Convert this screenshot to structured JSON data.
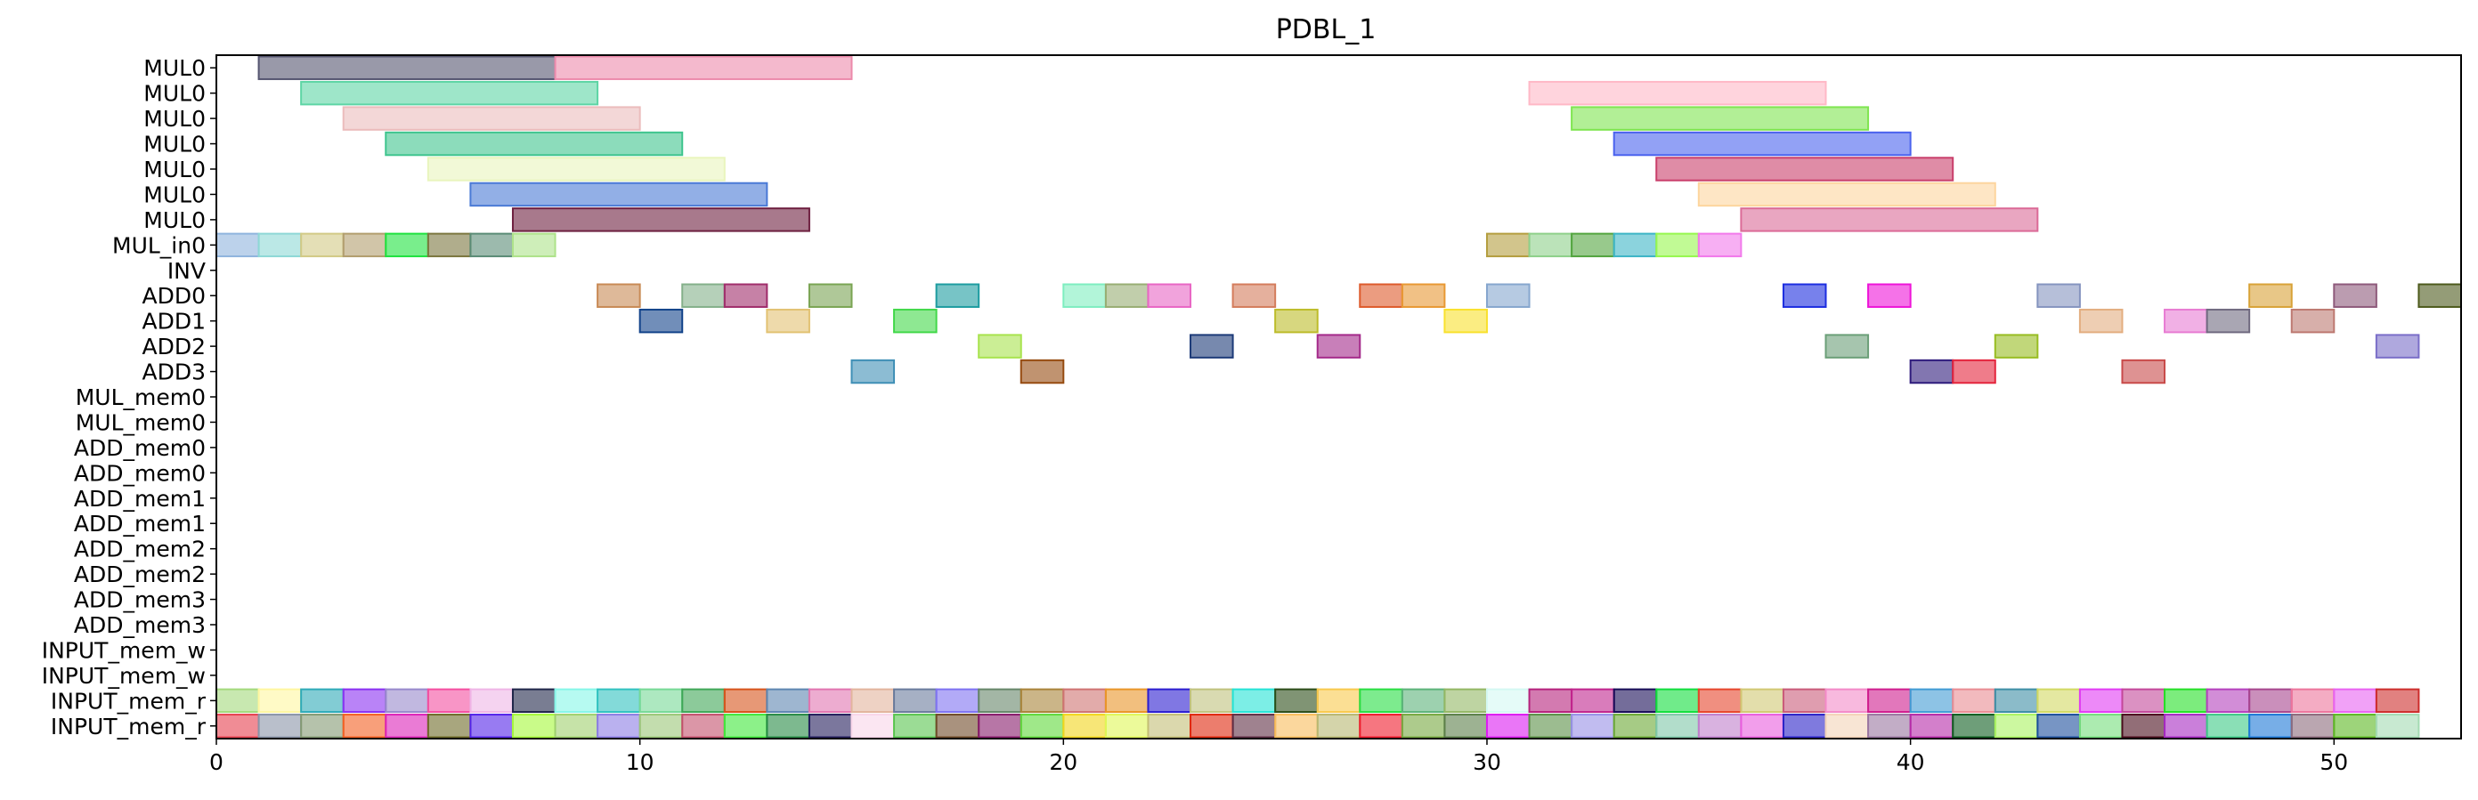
{
  "chart_data": {
    "type": "gantt",
    "title": "PDBL_1",
    "xlabel": "",
    "ylabel": "",
    "xlim": [
      0,
      53
    ],
    "x_ticks": [
      0,
      10,
      20,
      30,
      40,
      50
    ],
    "rows": [
      "MUL0",
      "MUL0",
      "MUL0",
      "MUL0",
      "MUL0",
      "MUL0",
      "MUL0",
      "MUL_in0",
      "INV",
      "ADD0",
      "ADD1",
      "ADD2",
      "ADD3",
      "MUL_mem0",
      "MUL_mem0",
      "ADD_mem0",
      "ADD_mem0",
      "ADD_mem1",
      "ADD_mem1",
      "ADD_mem2",
      "ADD_mem2",
      "ADD_mem3",
      "ADD_mem3",
      "INPUT_mem_w",
      "INPUT_mem_w",
      "INPUT_mem_r",
      "INPUT_mem_r"
    ],
    "tasks": [
      {
        "row": 0,
        "start": 1,
        "end": 8,
        "color": "#555570"
      },
      {
        "row": 0,
        "start": 8,
        "end": 15,
        "color": "#ec8aab"
      },
      {
        "row": 1,
        "start": 2,
        "end": 9,
        "color": "#5ed5a5"
      },
      {
        "row": 1,
        "start": 31,
        "end": 38,
        "color": "#ffb8c6"
      },
      {
        "row": 2,
        "start": 3,
        "end": 10,
        "color": "#ebbcbc"
      },
      {
        "row": 2,
        "start": 32,
        "end": 39,
        "color": "#7fe550"
      },
      {
        "row": 3,
        "start": 4,
        "end": 11,
        "color": "#3fc58e"
      },
      {
        "row": 3,
        "start": 33,
        "end": 40,
        "color": "#4a62ee"
      },
      {
        "row": 4,
        "start": 5,
        "end": 12,
        "color": "#e9f5bd"
      },
      {
        "row": 4,
        "start": 34,
        "end": 41,
        "color": "#c93f6b"
      },
      {
        "row": 5,
        "start": 6,
        "end": 13,
        "color": "#4a7ad6"
      },
      {
        "row": 5,
        "start": 35,
        "end": 42,
        "color": "#fdd59e"
      },
      {
        "row": 6,
        "start": 7,
        "end": 14,
        "color": "#6e2040"
      },
      {
        "row": 6,
        "start": 36,
        "end": 43,
        "color": "#db6b97"
      },
      {
        "row": 7,
        "start": 0,
        "end": 1,
        "color": "#8fb4de"
      },
      {
        "row": 7,
        "start": 1,
        "end": 2,
        "color": "#8ed8d6"
      },
      {
        "row": 7,
        "start": 2,
        "end": 3,
        "color": "#d2ca86"
      },
      {
        "row": 7,
        "start": 3,
        "end": 4,
        "color": "#b29e6e"
      },
      {
        "row": 7,
        "start": 4,
        "end": 5,
        "color": "#1fe23f"
      },
      {
        "row": 7,
        "start": 5,
        "end": 6,
        "color": "#7c773f"
      },
      {
        "row": 7,
        "start": 6,
        "end": 7,
        "color": "#5a8c76"
      },
      {
        "row": 7,
        "start": 7,
        "end": 8,
        "color": "#aee28a"
      },
      {
        "row": 7,
        "start": 30,
        "end": 31,
        "color": "#b49e3f"
      },
      {
        "row": 7,
        "start": 31,
        "end": 32,
        "color": "#8ed08a"
      },
      {
        "row": 7,
        "start": 32,
        "end": 33,
        "color": "#53a53f"
      },
      {
        "row": 7,
        "start": 33,
        "end": 34,
        "color": "#3db5c6"
      },
      {
        "row": 7,
        "start": 34,
        "end": 35,
        "color": "#97f74f"
      },
      {
        "row": 7,
        "start": 35,
        "end": 36,
        "color": "#f27aeb"
      },
      {
        "row": 9,
        "start": 9,
        "end": 10,
        "color": "#c88a55"
      },
      {
        "row": 9,
        "start": 11,
        "end": 12,
        "color": "#84b08a"
      },
      {
        "row": 9,
        "start": 12,
        "end": 13,
        "color": "#a02d6b"
      },
      {
        "row": 9,
        "start": 14,
        "end": 15,
        "color": "#7aa453"
      },
      {
        "row": 9,
        "start": 17,
        "end": 18,
        "color": "#1d9ca0"
      },
      {
        "row": 9,
        "start": 20,
        "end": 21,
        "color": "#7eeec0"
      },
      {
        "row": 9,
        "start": 21,
        "end": 22,
        "color": "#98ad73"
      },
      {
        "row": 9,
        "start": 22,
        "end": 23,
        "color": "#e866c4"
      },
      {
        "row": 9,
        "start": 24,
        "end": 25,
        "color": "#d47c5c"
      },
      {
        "row": 9,
        "start": 27,
        "end": 28,
        "color": "#de5a2b"
      },
      {
        "row": 9,
        "start": 28,
        "end": 29,
        "color": "#e89833"
      },
      {
        "row": 9,
        "start": 30,
        "end": 31,
        "color": "#86a6ce"
      },
      {
        "row": 9,
        "start": 37,
        "end": 38,
        "color": "#1c2de0"
      },
      {
        "row": 9,
        "start": 39,
        "end": 40,
        "color": "#ee14d8"
      },
      {
        "row": 9,
        "start": 43,
        "end": 44,
        "color": "#8594bf"
      },
      {
        "row": 9,
        "start": 48,
        "end": 49,
        "color": "#d8a237"
      },
      {
        "row": 9,
        "start": 50,
        "end": 51,
        "color": "#8e5a7b"
      },
      {
        "row": 9,
        "start": 52,
        "end": 53,
        "color": "#4d5a1c"
      },
      {
        "row": 10,
        "start": 10,
        "end": 11,
        "color": "#12438a"
      },
      {
        "row": 10,
        "start": 13,
        "end": 14,
        "color": "#e2c273"
      },
      {
        "row": 10,
        "start": 16,
        "end": 17,
        "color": "#42d84a"
      },
      {
        "row": 10,
        "start": 25,
        "end": 26,
        "color": "#bdbc2a"
      },
      {
        "row": 10,
        "start": 29,
        "end": 30,
        "color": "#f9e12e"
      },
      {
        "row": 10,
        "start": 44,
        "end": 45,
        "color": "#e3ae80"
      },
      {
        "row": 10,
        "start": 46,
        "end": 47,
        "color": "#e77cd3"
      },
      {
        "row": 10,
        "start": 47,
        "end": 48,
        "color": "#706a80"
      },
      {
        "row": 10,
        "start": 49,
        "end": 50,
        "color": "#bd7971"
      },
      {
        "row": 11,
        "start": 18,
        "end": 19,
        "color": "#a8e34e"
      },
      {
        "row": 11,
        "start": 23,
        "end": 24,
        "color": "#1c3a78"
      },
      {
        "row": 11,
        "start": 26,
        "end": 27,
        "color": "#a42a8a"
      },
      {
        "row": 11,
        "start": 38,
        "end": 39,
        "color": "#6b9f78"
      },
      {
        "row": 11,
        "start": 42,
        "end": 43,
        "color": "#98bd22"
      },
      {
        "row": 11,
        "start": 51,
        "end": 52,
        "color": "#7a6ec8"
      },
      {
        "row": 12,
        "start": 15,
        "end": 16,
        "color": "#3f8fb6"
      },
      {
        "row": 12,
        "start": 19,
        "end": 20,
        "color": "#964b10"
      },
      {
        "row": 12,
        "start": 40,
        "end": 41,
        "color": "#2e1b7c"
      },
      {
        "row": 12,
        "start": 41,
        "end": 42,
        "color": "#e4243c"
      },
      {
        "row": 12,
        "start": 45,
        "end": 46,
        "color": "#c84a49"
      },
      {
        "row": 25,
        "start": 0,
        "end": 1,
        "color": "#a3d97c"
      },
      {
        "row": 25,
        "start": 1,
        "end": 2,
        "color": "#fff6a0"
      },
      {
        "row": 25,
        "start": 2,
        "end": 3,
        "color": "#2eaab8"
      },
      {
        "row": 25,
        "start": 3,
        "end": 4,
        "color": "#8a31f2"
      },
      {
        "row": 25,
        "start": 4,
        "end": 5,
        "color": "#9889cc"
      },
      {
        "row": 25,
        "start": 5,
        "end": 6,
        "color": "#f44ea0"
      },
      {
        "row": 25,
        "start": 6,
        "end": 7,
        "color": "#efb5e6"
      },
      {
        "row": 25,
        "start": 7,
        "end": 8,
        "color": "#1f2649"
      },
      {
        "row": 25,
        "start": 8,
        "end": 9,
        "color": "#86f6e8"
      },
      {
        "row": 25,
        "start": 9,
        "end": 10,
        "color": "#31c2c0"
      },
      {
        "row": 25,
        "start": 10,
        "end": 11,
        "color": "#76d996"
      },
      {
        "row": 25,
        "start": 11,
        "end": 12,
        "color": "#3fa757"
      },
      {
        "row": 25,
        "start": 12,
        "end": 13,
        "color": "#d7531b"
      },
      {
        "row": 25,
        "start": 13,
        "end": 14,
        "color": "#5e86b1"
      },
      {
        "row": 25,
        "start": 14,
        "end": 15,
        "color": "#e175b0"
      },
      {
        "row": 25,
        "start": 15,
        "end": 16,
        "color": "#e2b49d"
      },
      {
        "row": 25,
        "start": 16,
        "end": 17,
        "color": "#6a7b9c"
      },
      {
        "row": 25,
        "start": 17,
        "end": 18,
        "color": "#7e72f1"
      },
      {
        "row": 25,
        "start": 18,
        "end": 19,
        "color": "#668669"
      },
      {
        "row": 25,
        "start": 19,
        "end": 20,
        "color": "#a98339"
      },
      {
        "row": 25,
        "start": 20,
        "end": 21,
        "color": "#cf7372"
      },
      {
        "row": 25,
        "start": 21,
        "end": 22,
        "color": "#e99528"
      },
      {
        "row": 25,
        "start": 22,
        "end": 23,
        "color": "#2b1dd0"
      },
      {
        "row": 25,
        "start": 23,
        "end": 24,
        "color": "#c0c27d"
      },
      {
        "row": 25,
        "start": 24,
        "end": 25,
        "color": "#25e3d6"
      },
      {
        "row": 25,
        "start": 25,
        "end": 26,
        "color": "#2c4d18"
      },
      {
        "row": 25,
        "start": 26,
        "end": 27,
        "color": "#f8c94d"
      },
      {
        "row": 25,
        "start": 27,
        "end": 28,
        "color": "#27de42"
      },
      {
        "row": 25,
        "start": 28,
        "end": 29,
        "color": "#5cb37a"
      },
      {
        "row": 25,
        "start": 29,
        "end": 30,
        "color": "#93b764"
      },
      {
        "row": 25,
        "start": 30,
        "end": 31,
        "color": "#d4f8f3"
      },
      {
        "row": 25,
        "start": 31,
        "end": 32,
        "color": "#b5217c"
      },
      {
        "row": 25,
        "start": 32,
        "end": 33,
        "color": "#c0248d"
      },
      {
        "row": 25,
        "start": 33,
        "end": 34,
        "color": "#170c57"
      },
      {
        "row": 25,
        "start": 34,
        "end": 35,
        "color": "#10dd3c"
      },
      {
        "row": 25,
        "start": 35,
        "end": 36,
        "color": "#e6452c"
      },
      {
        "row": 25,
        "start": 36,
        "end": 37,
        "color": "#d1c873"
      },
      {
        "row": 25,
        "start": 37,
        "end": 38,
        "color": "#c95b7a"
      },
      {
        "row": 25,
        "start": 38,
        "end": 39,
        "color": "#f38ac8"
      },
      {
        "row": 25,
        "start": 39,
        "end": 40,
        "color": "#cf1d8e"
      },
      {
        "row": 25,
        "start": 40,
        "end": 41,
        "color": "#419bd4"
      },
      {
        "row": 25,
        "start": 41,
        "end": 42,
        "color": "#e98c93"
      },
      {
        "row": 25,
        "start": 42,
        "end": 43,
        "color": "#3d8ea5"
      },
      {
        "row": 25,
        "start": 43,
        "end": 44,
        "color": "#d2d963"
      },
      {
        "row": 25,
        "start": 44,
        "end": 45,
        "color": "#e13bf4"
      },
      {
        "row": 25,
        "start": 45,
        "end": 46,
        "color": "#c3479a"
      },
      {
        "row": 25,
        "start": 46,
        "end": 47,
        "color": "#24df26"
      },
      {
        "row": 25,
        "start": 47,
        "end": 48,
        "color": "#b441bd"
      },
      {
        "row": 25,
        "start": 48,
        "end": 49,
        "color": "#a6458d"
      },
      {
        "row": 25,
        "start": 49,
        "end": 50,
        "color": "#ec749b"
      },
      {
        "row": 25,
        "start": 50,
        "end": 51,
        "color": "#e863f1"
      },
      {
        "row": 25,
        "start": 51,
        "end": 52,
        "color": "#cd2d2c"
      },
      {
        "row": 26,
        "start": 0,
        "end": 1,
        "color": "#e6404e"
      },
      {
        "row": 26,
        "start": 1,
        "end": 2,
        "color": "#8a94a8"
      },
      {
        "row": 26,
        "start": 2,
        "end": 3,
        "color": "#839a73"
      },
      {
        "row": 26,
        "start": 3,
        "end": 4,
        "color": "#f45f22"
      },
      {
        "row": 26,
        "start": 4,
        "end": 5,
        "color": "#dc23b9"
      },
      {
        "row": 26,
        "start": 5,
        "end": 6,
        "color": "#6e6a28"
      },
      {
        "row": 26,
        "start": 6,
        "end": 7,
        "color": "#5323ea"
      },
      {
        "row": 26,
        "start": 7,
        "end": 8,
        "color": "#a5f93a"
      },
      {
        "row": 26,
        "start": 8,
        "end": 9,
        "color": "#a0d16e"
      },
      {
        "row": 26,
        "start": 9,
        "end": 10,
        "color": "#8c7de4"
      },
      {
        "row": 26,
        "start": 10,
        "end": 11,
        "color": "#9bc778"
      },
      {
        "row": 26,
        "start": 11,
        "end": 12,
        "color": "#c3506d"
      },
      {
        "row": 26,
        "start": 12,
        "end": 13,
        "color": "#3fe83a"
      },
      {
        "row": 26,
        "start": 13,
        "end": 14,
        "color": "#278b45"
      },
      {
        "row": 26,
        "start": 14,
        "end": 15,
        "color": "#231d5c"
      },
      {
        "row": 26,
        "start": 15,
        "end": 16,
        "color": "#f9d6e9"
      },
      {
        "row": 26,
        "start": 16,
        "end": 17,
        "color": "#59c54f"
      },
      {
        "row": 26,
        "start": 17,
        "end": 18,
        "color": "#6f4a28"
      },
      {
        "row": 26,
        "start": 18,
        "end": 19,
        "color": "#871a6b"
      },
      {
        "row": 26,
        "start": 19,
        "end": 20,
        "color": "#5fd93a"
      },
      {
        "row": 26,
        "start": 20,
        "end": 21,
        "color": "#f2d61c"
      },
      {
        "row": 26,
        "start": 21,
        "end": 22,
        "color": "#dff657"
      },
      {
        "row": 26,
        "start": 22,
        "end": 23,
        "color": "#c3be76"
      },
      {
        "row": 26,
        "start": 23,
        "end": 24,
        "color": "#e0270b"
      },
      {
        "row": 26,
        "start": 24,
        "end": 25,
        "color": "#5f2e45"
      },
      {
        "row": 26,
        "start": 25,
        "end": 26,
        "color": "#f9bd5b"
      },
      {
        "row": 26,
        "start": 26,
        "end": 27,
        "color": "#b8b772"
      },
      {
        "row": 26,
        "start": 27,
        "end": 28,
        "color": "#f01a2c"
      },
      {
        "row": 26,
        "start": 28,
        "end": 29,
        "color": "#76a840"
      },
      {
        "row": 26,
        "start": 29,
        "end": 30,
        "color": "#5c7f49"
      },
      {
        "row": 26,
        "start": 30,
        "end": 31,
        "color": "#dc1bf2"
      },
      {
        "row": 26,
        "start": 31,
        "end": 32,
        "color": "#5a9046"
      },
      {
        "row": 26,
        "start": 32,
        "end": 33,
        "color": "#9890e6"
      },
      {
        "row": 26,
        "start": 33,
        "end": 34,
        "color": "#6aa934"
      },
      {
        "row": 26,
        "start": 34,
        "end": 35,
        "color": "#7fc7a8"
      },
      {
        "row": 26,
        "start": 35,
        "end": 36,
        "color": "#c07ecc"
      },
      {
        "row": 26,
        "start": 36,
        "end": 37,
        "color": "#e95ddd"
      },
      {
        "row": 26,
        "start": 37,
        "end": 38,
        "color": "#2a22c8"
      },
      {
        "row": 26,
        "start": 38,
        "end": 39,
        "color": "#f3d3b8"
      },
      {
        "row": 26,
        "start": 39,
        "end": 40,
        "color": "#9a76a0"
      },
      {
        "row": 26,
        "start": 40,
        "end": 41,
        "color": "#b62aa8"
      },
      {
        "row": 26,
        "start": 41,
        "end": 42,
        "color": "#0e5e1f"
      },
      {
        "row": 26,
        "start": 42,
        "end": 43,
        "color": "#aaf460"
      },
      {
        "row": 26,
        "start": 43,
        "end": 44,
        "color": "#1c4f9c"
      },
      {
        "row": 26,
        "start": 44,
        "end": 45,
        "color": "#74dd7c"
      },
      {
        "row": 26,
        "start": 45,
        "end": 46,
        "color": "#4a0d1d"
      },
      {
        "row": 26,
        "start": 46,
        "end": 47,
        "color": "#a629c2"
      },
      {
        "row": 26,
        "start": 47,
        "end": 48,
        "color": "#3cc986"
      },
      {
        "row": 26,
        "start": 48,
        "end": 49,
        "color": "#1c78d7"
      },
      {
        "row": 26,
        "start": 49,
        "end": 50,
        "color": "#8c6a7c"
      },
      {
        "row": 26,
        "start": 50,
        "end": 51,
        "color": "#5cb822"
      },
      {
        "row": 26,
        "start": 51,
        "end": 52,
        "color": "#a4dbb2"
      }
    ]
  }
}
